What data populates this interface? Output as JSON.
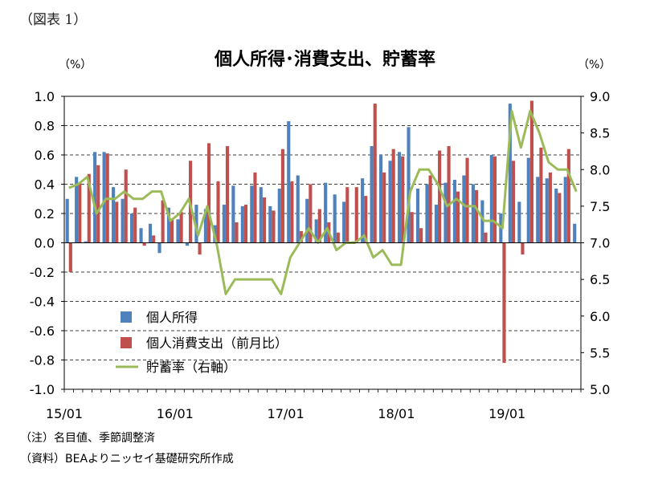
{
  "figure_label": "（図表 1）",
  "notes": [
    "（注）名目値、季節調整済",
    "（資料）BEAよりニッセイ基礎研究所作成"
  ],
  "chart_data": {
    "type": "bar",
    "title": "個人所得･消費支出、貯蓄率",
    "y_unit": "（%）",
    "y2_unit": "（%）",
    "ylim": [
      -1.0,
      1.0
    ],
    "y2lim": [
      5.0,
      9.0
    ],
    "y_ticks": [
      "1.0",
      "0.8",
      "0.6",
      "0.4",
      "0.2",
      "0.0",
      "-0.2",
      "-0.4",
      "-0.6",
      "-0.8",
      "-1.0"
    ],
    "y2_ticks": [
      "9.0",
      "8.5",
      "8.0",
      "7.5",
      "7.0",
      "6.5",
      "6.0",
      "5.5",
      "5.0"
    ],
    "x_tick_labels": [
      "15/01",
      "16/01",
      "17/01",
      "18/01",
      "19/01"
    ],
    "x_tick_index": [
      0,
      12,
      24,
      36,
      48
    ],
    "grid": true,
    "legend_position": "bottom-left",
    "series": [
      {
        "name": "個人所得",
        "kind": "bar",
        "axis": "left",
        "color": "#4f81bd",
        "values": [
          0.3,
          0.45,
          0.01,
          0.62,
          0.62,
          0.38,
          0.3,
          0.2,
          0.1,
          0.13,
          -0.07,
          0.24,
          0.16,
          -0.02,
          0.26,
          0.23,
          0.12,
          0.26,
          0.39,
          0.25,
          0.39,
          0.38,
          0.25,
          0.37,
          0.83,
          0.46,
          0.3,
          0.16,
          0.41,
          0.33,
          0.28,
          0.01,
          0.44,
          0.66,
          0.6,
          0.56,
          0.62,
          0.79,
          0.37,
          0.4,
          0.26,
          0.41,
          0.43,
          0.46,
          0.4,
          0.29,
          0.6,
          0.2,
          0.95,
          0.28,
          0.58,
          0.45,
          0.44,
          0.37,
          0.45,
          0.13
        ]
      },
      {
        "name": "個人消費支出（前月比）",
        "kind": "bar",
        "axis": "left",
        "color": "#c0504d",
        "values": [
          -0.2,
          0.41,
          0.47,
          0.53,
          0.61,
          0.28,
          0.5,
          0.24,
          -0.02,
          0.05,
          0.29,
          0.16,
          0.21,
          0.56,
          -0.08,
          0.68,
          0.42,
          0.66,
          0.14,
          0.26,
          0.48,
          0.31,
          0.22,
          0.64,
          0.42,
          0.08,
          0.4,
          0.23,
          0.14,
          0.07,
          0.38,
          0.38,
          0.32,
          0.95,
          0.48,
          0.64,
          0.59,
          0.21,
          0.1,
          0.46,
          0.63,
          0.66,
          0.35,
          0.58,
          0.36,
          0.07,
          0.59,
          -0.82,
          0.56,
          -0.08,
          0.97,
          0.65,
          0.48,
          0.34,
          0.64,
          0.0
        ]
      },
      {
        "name": "貯蓄率（右軸）",
        "kind": "line",
        "axis": "right",
        "color": "#9bbb59",
        "values": [
          7.75,
          7.8,
          7.9,
          7.4,
          7.6,
          7.6,
          7.7,
          7.6,
          7.6,
          7.7,
          7.7,
          7.3,
          7.4,
          7.6,
          7.1,
          7.5,
          7.0,
          6.3,
          6.5,
          6.5,
          6.5,
          6.5,
          6.5,
          6.3,
          6.8,
          7.0,
          7.2,
          7.0,
          7.2,
          6.9,
          7.0,
          7.0,
          7.1,
          6.8,
          6.9,
          6.7,
          6.7,
          7.7,
          8.0,
          8.0,
          7.8,
          7.5,
          7.6,
          7.5,
          7.5,
          7.3,
          7.3,
          7.2,
          8.8,
          8.3,
          8.8,
          8.5,
          8.1,
          8.0,
          8.0,
          7.7
        ]
      }
    ]
  }
}
